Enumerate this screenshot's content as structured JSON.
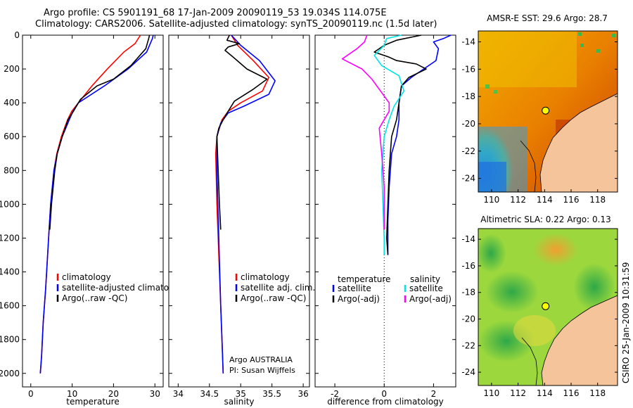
{
  "header": {
    "title_line1": "Argo profile: CS 5901191_68 17-Jan-2009 20090119_53 19.034S 114.075E",
    "title_line2": "Climatology: CARS2006. Satellite-adjusted climatology: synTS_20090119.nc (1.5d later)"
  },
  "side_label": "CSIRO 25-Jan-2009 10:31:59",
  "colors": {
    "climatology": "#ff0000",
    "satellite": "#0000ff",
    "argo": "#000000",
    "satellite_salinity_diff": "#00e5e5",
    "argo_salinity_diff": "#ff00ff",
    "land": "#f5c49a",
    "float_marker": "#ffff00"
  },
  "chart_data": [
    {
      "id": "temperature",
      "type": "line",
      "xlabel": "temperature",
      "xlim": [
        -2,
        32
      ],
      "ylim": [
        0,
        2080
      ],
      "y_reversed": true,
      "xticks": [
        0,
        10,
        20,
        30
      ],
      "yticks": [
        0,
        200,
        400,
        600,
        800,
        1000,
        1200,
        1400,
        1600,
        1800,
        2000
      ],
      "legend": [
        "climatology",
        "satellite-adjusted climatolog",
        "Argo(..raw -QC)"
      ],
      "series": [
        {
          "name": "climatology",
          "color": "#ff0000",
          "x": [
            26.5,
            25.2,
            22.5,
            18.5,
            14.8,
            11.5,
            9.9,
            8.9,
            7.4,
            6.3,
            5.6,
            4.8,
            4.3,
            3.6,
            3.0,
            2.6,
            2.3
          ],
          "y": [
            0,
            50,
            100,
            200,
            300,
            400,
            450,
            500,
            600,
            700,
            800,
            1000,
            1200,
            1500,
            1700,
            1900,
            2000
          ]
        },
        {
          "name": "satellite-adjusted climatolog",
          "color": "#0000ff",
          "x": [
            29.6,
            29.4,
            28.0,
            23.5,
            17.8,
            11.5,
            10.2,
            9.3,
            7.6,
            6.4,
            5.6,
            4.8,
            4.3,
            3.6,
            3.0,
            2.6,
            2.3
          ],
          "y": [
            0,
            20,
            100,
            200,
            300,
            400,
            450,
            500,
            600,
            700,
            800,
            1000,
            1200,
            1500,
            1700,
            1900,
            2000
          ]
        },
        {
          "name": "Argo(..raw -QC)",
          "color": "#000000",
          "x": [
            28.7,
            28.5,
            27.8,
            24.2,
            20.0,
            16.0,
            12.0,
            10.3,
            9.0,
            7.6,
            6.4,
            5.8,
            5.0,
            4.6
          ],
          "y": [
            0,
            20,
            80,
            180,
            260,
            300,
            380,
            450,
            500,
            600,
            700,
            800,
            1000,
            1150
          ]
        }
      ]
    },
    {
      "id": "salinity",
      "type": "line",
      "xlabel": "salinity",
      "xlim": [
        33.85,
        36.1
      ],
      "ylim": [
        0,
        2080
      ],
      "y_reversed": true,
      "xticks": [
        34,
        34.5,
        35,
        35.5,
        36
      ],
      "legend": [
        "climatology",
        "satellite adj. clim.",
        "Argo(..raw -QC)"
      ],
      "annotation": [
        "Argo AUSTRALIA",
        "PI: Susan Wijffels"
      ],
      "series": [
        {
          "name": "climatology",
          "color": "#ff0000",
          "x": [
            34.85,
            34.95,
            35.2,
            35.45,
            35.35,
            35.0,
            34.8,
            34.7,
            34.62,
            34.6,
            34.62,
            34.65,
            34.68,
            34.7,
            34.72
          ],
          "y": [
            0,
            60,
            150,
            250,
            330,
            400,
            450,
            500,
            600,
            700,
            1000,
            1300,
            1600,
            1800,
            2000
          ]
        },
        {
          "name": "satellite adj. clim.",
          "color": "#0000ff",
          "x": [
            34.85,
            35.0,
            35.3,
            35.55,
            35.45,
            35.05,
            34.8,
            34.68,
            34.62,
            34.62,
            34.65,
            34.68,
            34.7,
            34.72
          ],
          "y": [
            0,
            60,
            150,
            270,
            350,
            420,
            460,
            520,
            600,
            800,
            1200,
            1600,
            1800,
            2000
          ]
        },
        {
          "name": "Argo(..raw -QC)",
          "color": "#000000",
          "x": [
            34.82,
            34.78,
            34.98,
            34.8,
            34.75,
            34.88,
            35.1,
            35.42,
            35.2,
            34.9,
            34.8,
            34.72,
            34.65,
            34.62,
            34.64,
            34.66,
            34.68
          ],
          "y": [
            0,
            30,
            50,
            70,
            90,
            130,
            200,
            260,
            320,
            390,
            450,
            500,
            550,
            600,
            800,
            1000,
            1150
          ]
        }
      ]
    },
    {
      "id": "difference",
      "type": "line",
      "xlabel": "difference from climatology",
      "xlim": [
        -2.8,
        2.9
      ],
      "ylim": [
        0,
        2080
      ],
      "y_reversed": true,
      "xticks": [
        -2,
        0,
        2
      ],
      "legend_headers": [
        "temperature",
        "salinity"
      ],
      "legend": [
        "satellite",
        "Argo(-adj)",
        "satellite",
        "Argo(-adj)"
      ],
      "series": [
        {
          "name": "satellite",
          "group": "temperature",
          "color": "#0000ff",
          "x": [
            2.7,
            2.4,
            2.0,
            2.2,
            2.1,
            1.6,
            1.1,
            0.7,
            0.6,
            0.6,
            0.5,
            0.3,
            0.2,
            0.15,
            0.15
          ],
          "y": [
            0,
            20,
            40,
            80,
            150,
            200,
            250,
            300,
            400,
            500,
            600,
            700,
            900,
            1100,
            1300
          ]
        },
        {
          "name": "Argo(-adj)",
          "group": "temperature",
          "color": "#000000",
          "x": [
            1.5,
            0.5,
            0.0,
            -0.4,
            0.2,
            0.5,
            1.3,
            1.7,
            1.0,
            0.7,
            0.6,
            0.5,
            0.3,
            0.25,
            0.2,
            0.15,
            0.1,
            0.15
          ],
          "y": [
            0,
            30,
            60,
            100,
            130,
            150,
            170,
            200,
            250,
            300,
            400,
            500,
            600,
            700,
            800,
            1000,
            1200,
            1300
          ]
        },
        {
          "name": "satellite",
          "group": "salinity",
          "color": "#00e5e5",
          "x": [
            0.7,
            0.1,
            0.0,
            -0.4,
            -0.1,
            0.6,
            0.8,
            0.4,
            0.2,
            0.0,
            -0.1,
            -0.05,
            0.0,
            0.0
          ],
          "y": [
            0,
            20,
            60,
            120,
            180,
            240,
            330,
            420,
            500,
            600,
            800,
            1000,
            1200,
            1300
          ]
        },
        {
          "name": "Argo(-adj)",
          "group": "salinity",
          "color": "#ff00ff",
          "x": [
            -0.7,
            -0.8,
            -1.1,
            -1.7,
            -0.9,
            -0.5,
            -0.2,
            0.2,
            0.2,
            -0.2,
            -0.1,
            0.0,
            0.0
          ],
          "y": [
            0,
            40,
            80,
            140,
            200,
            260,
            320,
            400,
            450,
            550,
            700,
            900,
            1150
          ]
        }
      ]
    },
    {
      "id": "sst_map",
      "type": "heatmap",
      "title": "AMSR-E SST: 29.6 Argo: 28.7",
      "xlim": [
        109,
        119.5
      ],
      "ylim": [
        -25,
        -13.2
      ],
      "xticks": [
        110,
        112,
        114,
        116,
        118
      ],
      "yticks": [
        -14,
        -16,
        -18,
        -20,
        -22,
        -24
      ],
      "float_position": {
        "lon": 114.075,
        "lat": -19.034
      },
      "sst_value": 29.6,
      "argo_value": 28.7
    },
    {
      "id": "sla_map",
      "type": "heatmap",
      "title": "Altimetric SLA: 0.22 Argo: 0.13",
      "xlim": [
        109,
        119.5
      ],
      "ylim": [
        -25,
        -13.2
      ],
      "xticks": [
        110,
        112,
        114,
        116,
        118
      ],
      "yticks": [
        -14,
        -16,
        -18,
        -20,
        -22,
        -24
      ],
      "float_position": {
        "lon": 114.075,
        "lat": -19.034
      },
      "sla_value": 0.22,
      "argo_value": 0.13
    }
  ]
}
